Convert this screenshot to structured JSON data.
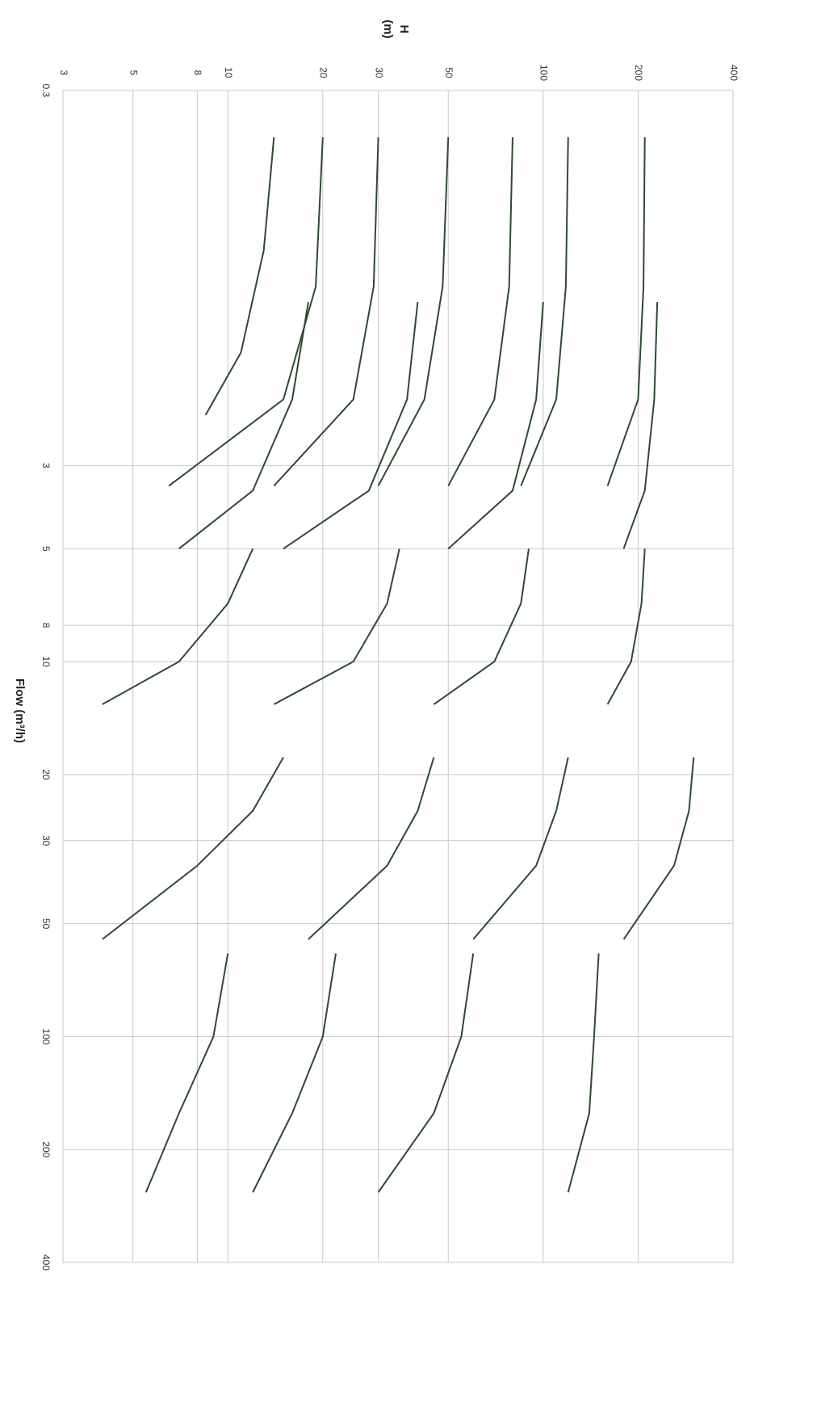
{
  "chart_data": {
    "type": "line",
    "xlabel": "Flow (m³/h)",
    "ylabel": "H",
    "ylabel_unit": "(m)",
    "log_x": true,
    "log_y": true,
    "grid": true,
    "color": "#2f4a2f",
    "xlim": [
      0.3,
      400
    ],
    "xticks": [
      0.3,
      3,
      5,
      8,
      10,
      20,
      30,
      50,
      100,
      200,
      400
    ],
    "ylim": [
      3,
      400
    ],
    "yticks": [
      3,
      5,
      8,
      10,
      20,
      30,
      50,
      100,
      200,
      400
    ],
    "series": [
      {
        "x": [
          0.4,
          0.8,
          1.5,
          2.2
        ],
        "values": [
          14,
          13,
          11,
          8.5
        ]
      },
      {
        "x": [
          0.4,
          1,
          2,
          3.4
        ],
        "values": [
          20,
          19,
          15,
          6.5
        ]
      },
      {
        "x": [
          0.4,
          1,
          2,
          3.4
        ],
        "values": [
          30,
          29,
          25,
          14
        ]
      },
      {
        "x": [
          0.4,
          1,
          2,
          3.4
        ],
        "values": [
          50,
          48,
          42,
          30
        ]
      },
      {
        "x": [
          0.4,
          1,
          2,
          3.4
        ],
        "values": [
          80,
          78,
          70,
          50
        ]
      },
      {
        "x": [
          0.4,
          1,
          2,
          3.4
        ],
        "values": [
          120,
          118,
          110,
          85
        ]
      },
      {
        "x": [
          0.4,
          1,
          2,
          3.4
        ],
        "values": [
          210,
          208,
          200,
          160
        ]
      },
      {
        "x": [
          1.1,
          2,
          3.5,
          5
        ],
        "values": [
          230,
          225,
          210,
          180
        ]
      },
      {
        "x": [
          1.1,
          2,
          3.5,
          5
        ],
        "values": [
          100,
          95,
          80,
          50
        ]
      },
      {
        "x": [
          1.1,
          2,
          3.5,
          5
        ],
        "values": [
          40,
          37,
          28,
          15
        ]
      },
      {
        "x": [
          1.1,
          2,
          3.5,
          5
        ],
        "values": [
          18,
          16,
          12,
          7
        ]
      },
      {
        "x": [
          5,
          7,
          10,
          13
        ],
        "values": [
          210,
          205,
          190,
          160
        ]
      },
      {
        "x": [
          5,
          7,
          10,
          13
        ],
        "values": [
          90,
          85,
          70,
          45
        ]
      },
      {
        "x": [
          5,
          7,
          10,
          13
        ],
        "values": [
          35,
          32,
          25,
          14
        ]
      },
      {
        "x": [
          5,
          7,
          10,
          13
        ],
        "values": [
          12,
          10,
          7,
          4
        ]
      },
      {
        "x": [
          18,
          25,
          35,
          55
        ],
        "values": [
          300,
          290,
          260,
          180
        ]
      },
      {
        "x": [
          18,
          25,
          35,
          55
        ],
        "values": [
          120,
          110,
          95,
          60
        ]
      },
      {
        "x": [
          18,
          25,
          35,
          55
        ],
        "values": [
          45,
          40,
          32,
          18
        ]
      },
      {
        "x": [
          18,
          25,
          35,
          55
        ],
        "values": [
          15,
          12,
          8,
          4
        ]
      },
      {
        "x": [
          60,
          100,
          160,
          260
        ],
        "values": [
          150,
          145,
          140,
          120
        ]
      },
      {
        "x": [
          60,
          100,
          160,
          260
        ],
        "values": [
          60,
          55,
          45,
          30
        ]
      },
      {
        "x": [
          60,
          100,
          160,
          260
        ],
        "values": [
          22,
          20,
          16,
          12
        ]
      },
      {
        "x": [
          60,
          100,
          160,
          260
        ],
        "values": [
          10,
          9,
          7,
          5.5
        ]
      }
    ]
  }
}
